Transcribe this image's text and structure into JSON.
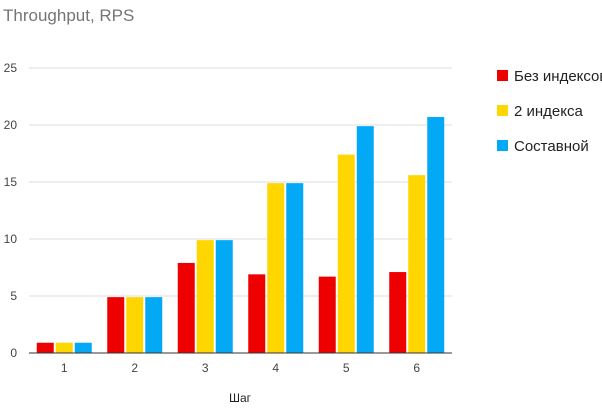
{
  "chart_data": {
    "type": "bar",
    "title": "Throughput, RPS",
    "xlabel": "Шаг",
    "ylabel": "",
    "categories": [
      "1",
      "2",
      "3",
      "4",
      "5",
      "6"
    ],
    "ylim": [
      0,
      25
    ],
    "yticks": [
      0,
      5,
      10,
      15,
      20,
      25
    ],
    "grid": true,
    "legend_position": "right",
    "series": [
      {
        "name": "Без индексов",
        "color": "#ee0000",
        "values": [
          0.9,
          4.9,
          7.9,
          6.9,
          6.7,
          7.1
        ]
      },
      {
        "name": "2 индекса",
        "color": "#ffd600",
        "values": [
          0.9,
          4.9,
          9.9,
          14.9,
          17.4,
          15.6
        ]
      },
      {
        "name": "Составной",
        "color": "#03a9f4",
        "values": [
          0.9,
          4.9,
          9.9,
          14.9,
          19.9,
          20.7
        ]
      }
    ]
  }
}
